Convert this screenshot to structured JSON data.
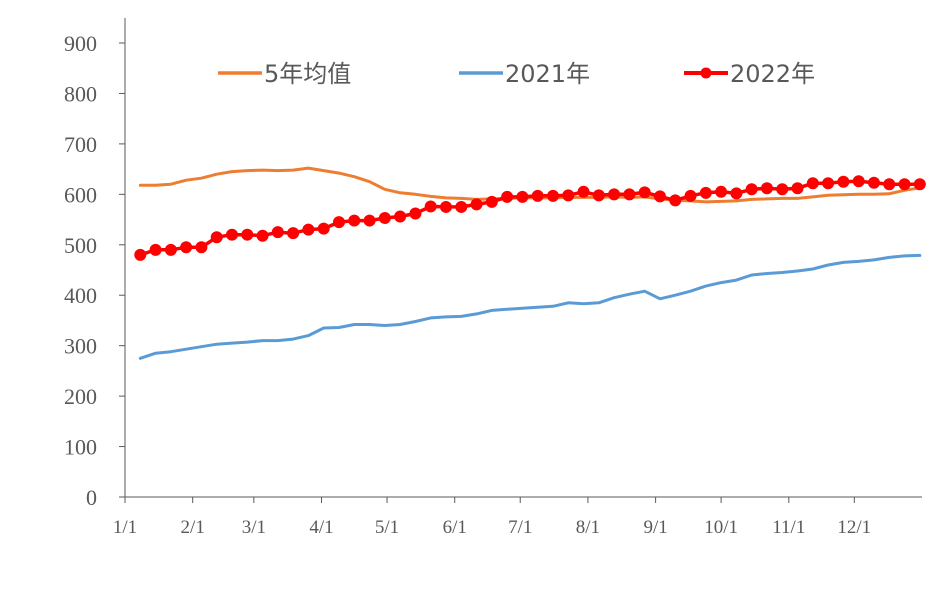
{
  "chart_data": {
    "type": "line",
    "title": "",
    "xlabel": "",
    "ylabel": "",
    "ylim": [
      0,
      900
    ],
    "y_ticks": [
      0,
      100,
      200,
      300,
      400,
      500,
      600,
      700,
      800,
      900
    ],
    "x_range_days": [
      0,
      365
    ],
    "x_ticks": [
      {
        "day": 0,
        "label": "1/1"
      },
      {
        "day": 31,
        "label": "2/1"
      },
      {
        "day": 59,
        "label": "3/1"
      },
      {
        "day": 90,
        "label": "4/1"
      },
      {
        "day": 120,
        "label": "5/1"
      },
      {
        "day": 151,
        "label": "6/1"
      },
      {
        "day": 181,
        "label": "7/1"
      },
      {
        "day": 212,
        "label": "8/1"
      },
      {
        "day": 243,
        "label": "9/1"
      },
      {
        "day": 273,
        "label": "10/1"
      },
      {
        "day": 304,
        "label": "11/1"
      },
      {
        "day": 334,
        "label": "12/1"
      }
    ],
    "grid": false,
    "legend_position": "top",
    "series": [
      {
        "name": "5年均值",
        "color": "#ED7D31",
        "markers": false,
        "x": [
          7,
          14,
          21,
          28,
          35,
          42,
          49,
          56,
          63,
          70,
          77,
          84,
          91,
          98,
          105,
          112,
          119,
          126,
          133,
          140,
          147,
          154,
          161,
          168,
          175,
          182,
          189,
          196,
          203,
          210,
          217,
          224,
          231,
          238,
          245,
          252,
          259,
          266,
          273,
          280,
          287,
          294,
          301,
          308,
          315,
          322,
          329,
          336,
          343,
          350,
          357,
          364
        ],
        "values": [
          618,
          618,
          620,
          628,
          632,
          640,
          645,
          647,
          648,
          647,
          648,
          652,
          647,
          642,
          635,
          625,
          610,
          603,
          600,
          596,
          593,
          592,
          590,
          591,
          592,
          593,
          593,
          593,
          594,
          594,
          594,
          595,
          594,
          595,
          591,
          588,
          587,
          585,
          586,
          587,
          590,
          591,
          592,
          592,
          595,
          598,
          599,
          600,
          600,
          601,
          608,
          613
        ]
      },
      {
        "name": "2021年",
        "color": "#5B9BD5",
        "markers": false,
        "x": [
          7,
          14,
          21,
          28,
          35,
          42,
          49,
          56,
          63,
          70,
          77,
          84,
          91,
          98,
          105,
          112,
          119,
          126,
          133,
          140,
          147,
          154,
          161,
          168,
          175,
          182,
          189,
          196,
          203,
          210,
          217,
          224,
          231,
          238,
          245,
          252,
          259,
          266,
          273,
          280,
          287,
          294,
          301,
          308,
          315,
          322,
          329,
          336,
          343,
          350,
          357,
          364
        ],
        "values": [
          275,
          285,
          288,
          293,
          298,
          303,
          305,
          307,
          310,
          310,
          313,
          320,
          335,
          336,
          342,
          342,
          340,
          342,
          348,
          355,
          357,
          358,
          363,
          370,
          372,
          374,
          376,
          378,
          385,
          383,
          385,
          395,
          402,
          408,
          393,
          400,
          408,
          418,
          425,
          430,
          440,
          443,
          445,
          448,
          452,
          460,
          465,
          467,
          470,
          475,
          478,
          479
        ]
      },
      {
        "name": "2022年",
        "color": "#FF0000",
        "markers": true,
        "x": [
          7,
          14,
          21,
          28,
          35,
          42,
          49,
          56,
          63,
          70,
          77,
          84,
          91,
          98,
          105,
          112,
          119,
          126,
          133,
          140,
          147,
          154,
          161,
          168,
          175,
          182,
          189,
          196,
          203,
          210,
          217,
          224,
          231,
          238,
          245,
          252,
          259,
          266,
          273,
          280,
          287,
          294,
          301,
          308,
          315,
          322,
          329,
          336,
          343,
          350,
          357,
          364
        ],
        "values": [
          480,
          490,
          490,
          495,
          495,
          515,
          520,
          520,
          518,
          525,
          523,
          530,
          532,
          545,
          548,
          548,
          553,
          556,
          562,
          576,
          575,
          575,
          580,
          585,
          595,
          595,
          597,
          597,
          598,
          605,
          598,
          600,
          600,
          604,
          596,
          588,
          597,
          603,
          605,
          602,
          610,
          612,
          610,
          612,
          622,
          622,
          625,
          626,
          623,
          620,
          620,
          620
        ]
      }
    ]
  }
}
